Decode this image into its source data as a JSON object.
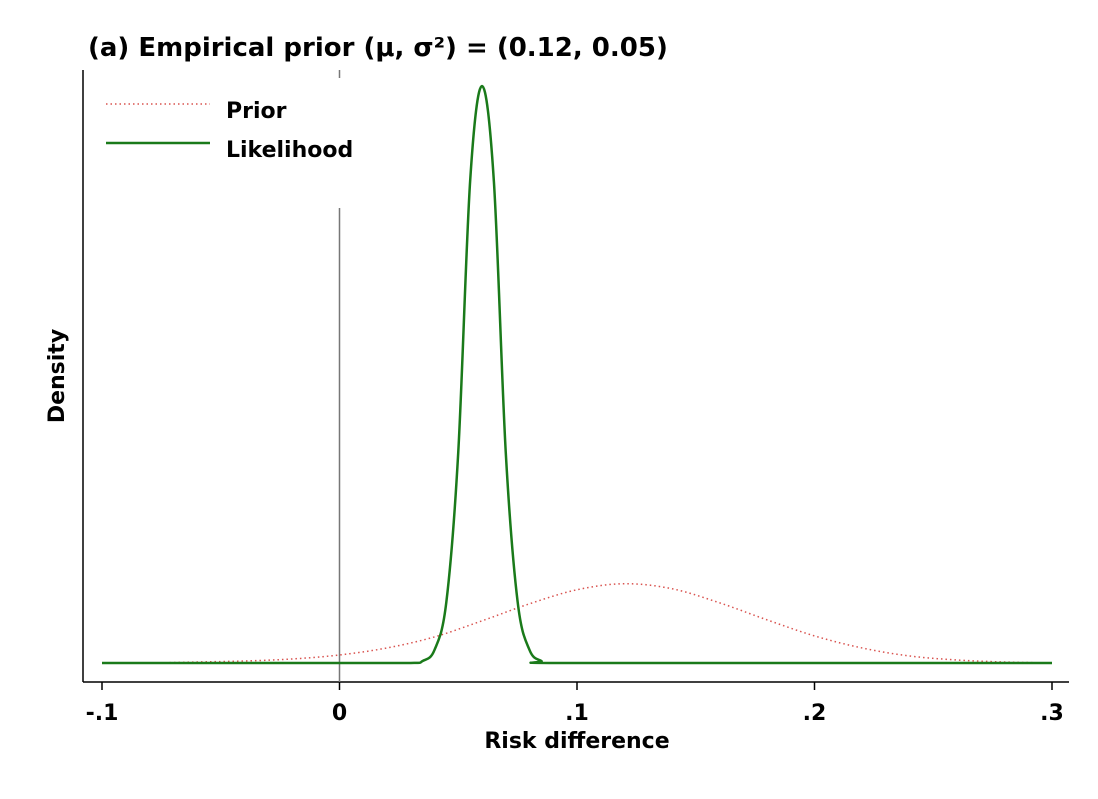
{
  "chart_data": {
    "type": "line",
    "title": "(a) Empirical prior (μ, σ²) = (0.12, 0.05)",
    "xlabel": "Risk difference",
    "ylabel": "Density",
    "xlim": [
      -0.1,
      0.3
    ],
    "xticks": [
      {
        "value": -0.1,
        "label": "-.1"
      },
      {
        "value": 0.0,
        "label": "0"
      },
      {
        "value": 0.1,
        "label": ".1"
      },
      {
        "value": 0.2,
        "label": ".2"
      },
      {
        "value": 0.3,
        "label": ".3"
      }
    ],
    "yticks_shown": false,
    "reference_line_x": 0,
    "legend_position": "top-left",
    "series": [
      {
        "name": "Prior",
        "style": "dotted",
        "color": "#d9534f",
        "x": [
          -0.1,
          -0.08,
          -0.06,
          -0.04,
          -0.02,
          0.0,
          0.02,
          0.04,
          0.06,
          0.08,
          0.1,
          0.12,
          0.14,
          0.16,
          0.18,
          0.2,
          0.22,
          0.24,
          0.26,
          0.28,
          0.3
        ],
        "y": [
          0.0,
          0.0,
          0.1,
          0.2,
          0.4,
          0.8,
          1.5,
          2.6,
          4.2,
          5.9,
          7.3,
          7.9,
          7.4,
          6.0,
          4.3,
          2.7,
          1.5,
          0.7,
          0.3,
          0.1,
          0.0
        ]
      },
      {
        "name": "Likelihood",
        "style": "solid",
        "color": "#1a7a1a",
        "x": [
          -0.1,
          0.0,
          0.03,
          0.035,
          0.04,
          0.045,
          0.05,
          0.055,
          0.06,
          0.065,
          0.07,
          0.075,
          0.08,
          0.085,
          0.09,
          0.2,
          0.3
        ],
        "y": [
          0.0,
          0.0,
          0.0,
          0.2,
          1.3,
          6.1,
          21.0,
          48.0,
          57.5,
          48.0,
          21.0,
          6.1,
          1.3,
          0.2,
          0.0,
          0.0,
          0.0
        ]
      }
    ]
  }
}
